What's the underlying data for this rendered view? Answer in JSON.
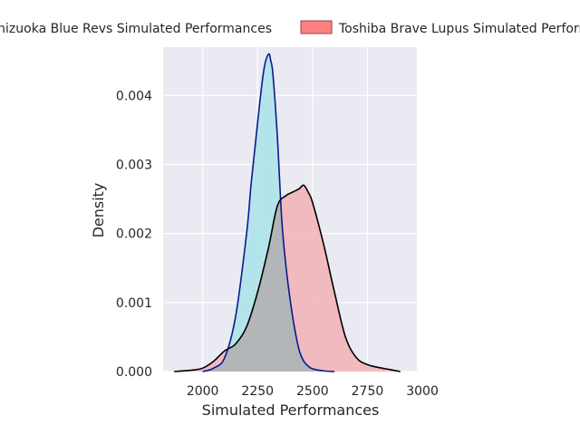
{
  "chart_data": {
    "type": "area",
    "title": "",
    "xlabel": "Simulated Performances",
    "ylabel": "Density",
    "xlim": [
      1820,
      2975
    ],
    "ylim": [
      0,
      0.0047
    ],
    "xticks": [
      2000,
      2250,
      2500,
      2750,
      3000
    ],
    "yticks": [
      0.0,
      0.001,
      0.002,
      0.003,
      0.004
    ],
    "xtick_labels": [
      "2000",
      "2250",
      "2500",
      "2750",
      "3000"
    ],
    "ytick_labels": [
      "0.000",
      "0.001",
      "0.002",
      "0.003",
      "0.004"
    ],
    "grid": true,
    "legend_position": "top",
    "series": [
      {
        "name": "Shizuoka Blue Revs Simulated Performances",
        "fill_color": "#b0e4ea",
        "line_color": "#0b1a8c",
        "x": [
          2000,
          2050,
          2100,
          2150,
          2200,
          2220,
          2240,
          2260,
          2280,
          2300,
          2310,
          2320,
          2340,
          2360,
          2380,
          2400,
          2420,
          2440,
          2460,
          2480,
          2500,
          2550,
          2600
        ],
        "y": [
          0.0,
          5e-05,
          0.0002,
          0.0008,
          0.002,
          0.0027,
          0.0033,
          0.0039,
          0.0044,
          0.0046,
          0.0045,
          0.0043,
          0.0034,
          0.0022,
          0.0015,
          0.001,
          0.0006,
          0.0003,
          0.00015,
          8e-05,
          4e-05,
          1e-05,
          0.0
        ]
      },
      {
        "name": "Toshiba Brave Lupus Simulated Performances",
        "fill_color": "#f2b1b6",
        "line_color": "#000000",
        "x": [
          1870,
          1950,
          2000,
          2050,
          2100,
          2150,
          2200,
          2250,
          2300,
          2340,
          2380,
          2410,
          2440,
          2460,
          2480,
          2500,
          2550,
          2600,
          2650,
          2700,
          2750,
          2800,
          2850,
          2900
        ],
        "y": [
          0.0,
          2e-05,
          5e-05,
          0.00015,
          0.0003,
          0.0004,
          0.00065,
          0.00115,
          0.0018,
          0.0024,
          0.00255,
          0.0026,
          0.00265,
          0.0027,
          0.0026,
          0.00245,
          0.00185,
          0.00115,
          0.0005,
          0.0002,
          0.0001,
          6e-05,
          3e-05,
          0.0
        ]
      }
    ]
  }
}
